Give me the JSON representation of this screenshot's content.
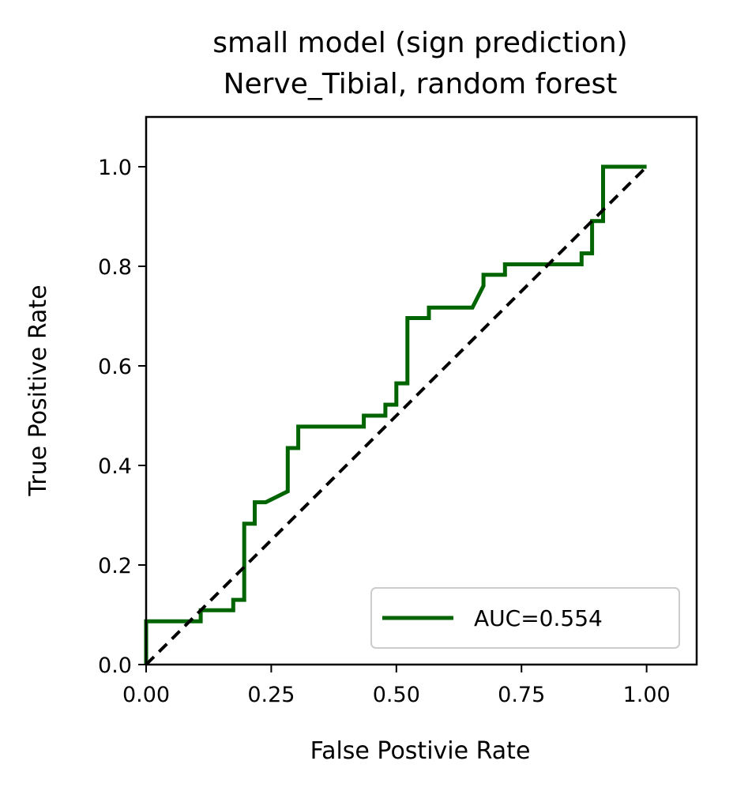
{
  "chart_data": {
    "type": "line",
    "title": "small model (sign prediction)",
    "subtitle": "Nerve_Tibial, random forest",
    "xlabel": "False Postivie Rate",
    "ylabel": "True Positive Rate",
    "xlim": [
      0,
      1.1
    ],
    "ylim": [
      0,
      1.1
    ],
    "xticks": [
      0,
      0.25,
      0.5,
      0.75,
      1.0
    ],
    "xtick_labels": [
      "0.00",
      "0.25",
      "0.50",
      "0.75",
      "1.00"
    ],
    "yticks": [
      0,
      0.2,
      0.4,
      0.6,
      0.8,
      1.0
    ],
    "ytick_labels": [
      "0.0",
      "0.2",
      "0.4",
      "0.6",
      "0.8",
      "1.0"
    ],
    "grid": false,
    "legend_position": "lower-right",
    "series": [
      {
        "name": "AUC=0.554",
        "color": "#006400",
        "style": "solid",
        "points": [
          [
            0.0,
            0.0
          ],
          [
            0.0,
            0.087
          ],
          [
            0.109,
            0.087
          ],
          [
            0.109,
            0.109
          ],
          [
            0.174,
            0.109
          ],
          [
            0.174,
            0.13
          ],
          [
            0.196,
            0.13
          ],
          [
            0.196,
            0.283
          ],
          [
            0.217,
            0.283
          ],
          [
            0.217,
            0.326
          ],
          [
            0.239,
            0.326
          ],
          [
            0.283,
            0.348
          ],
          [
            0.283,
            0.435
          ],
          [
            0.304,
            0.435
          ],
          [
            0.304,
            0.478
          ],
          [
            0.435,
            0.478
          ],
          [
            0.435,
            0.5
          ],
          [
            0.478,
            0.5
          ],
          [
            0.478,
            0.522
          ],
          [
            0.5,
            0.522
          ],
          [
            0.5,
            0.565
          ],
          [
            0.522,
            0.565
          ],
          [
            0.522,
            0.696
          ],
          [
            0.565,
            0.696
          ],
          [
            0.565,
            0.717
          ],
          [
            0.652,
            0.717
          ],
          [
            0.674,
            0.761
          ],
          [
            0.674,
            0.783
          ],
          [
            0.717,
            0.783
          ],
          [
            0.717,
            0.804
          ],
          [
            0.87,
            0.804
          ],
          [
            0.87,
            0.826
          ],
          [
            0.891,
            0.826
          ],
          [
            0.891,
            0.891
          ],
          [
            0.913,
            0.891
          ],
          [
            0.913,
            1.0
          ],
          [
            1.0,
            1.0
          ]
        ]
      },
      {
        "name": "",
        "color": "#000000",
        "style": "dashed",
        "points": [
          [
            0.0,
            0.0
          ],
          [
            1.0,
            1.0
          ]
        ]
      }
    ]
  }
}
